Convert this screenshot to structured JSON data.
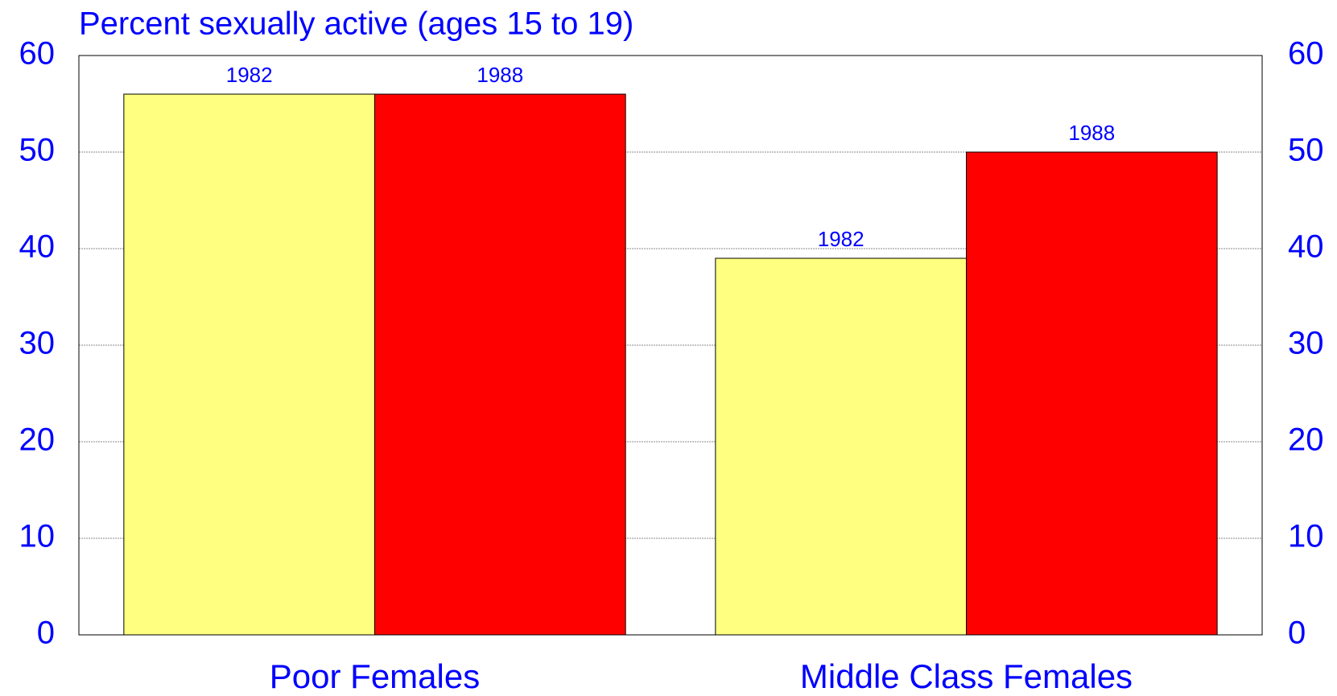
{
  "chart_data": {
    "type": "bar",
    "title": "Percent sexually active (ages 15 to 19)",
    "categories": [
      "Poor Females",
      "Middle Class Females"
    ],
    "series": [
      {
        "name": "1982",
        "color": "#ffff80",
        "values": [
          56,
          39
        ]
      },
      {
        "name": "1988",
        "color": "#ff0000",
        "values": [
          56,
          50
        ]
      }
    ],
    "ylim": [
      0,
      60
    ],
    "yticks": [
      0,
      10,
      20,
      30,
      40,
      50,
      60
    ],
    "y2lim": [
      0,
      60
    ],
    "y2ticks": [
      0,
      10,
      20,
      30,
      40,
      50,
      60
    ],
    "grid": true
  }
}
